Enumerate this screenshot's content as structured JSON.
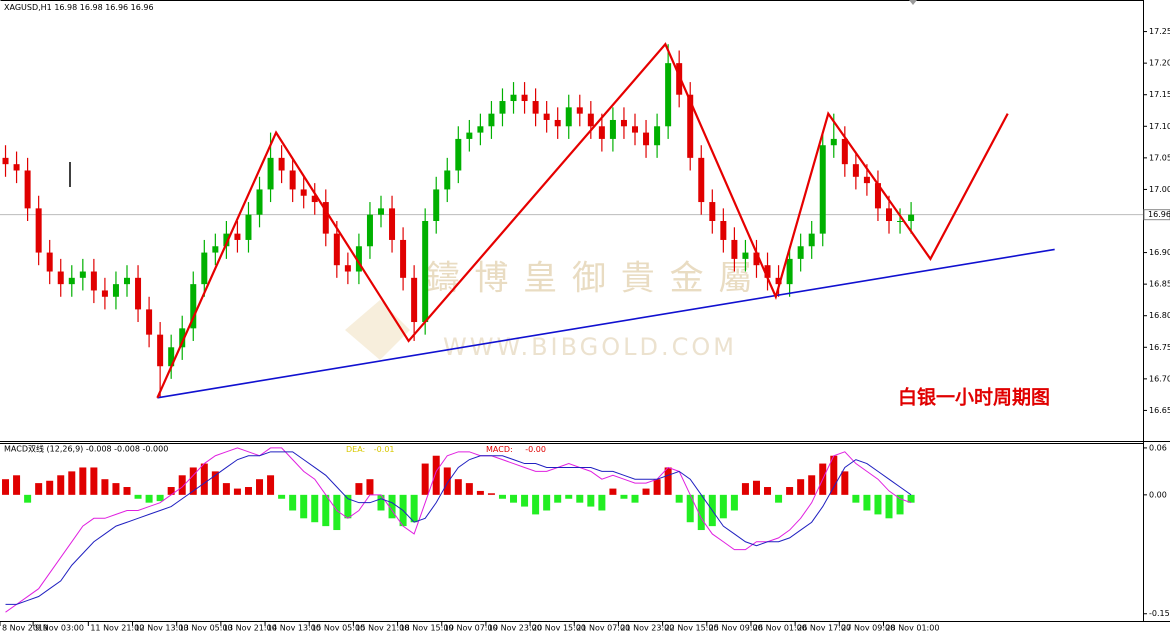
{
  "symbol": "XAGUSD,H1",
  "ohlc_header": [
    16.98,
    16.98,
    16.96,
    16.96
  ],
  "caption": "白银一小时周期图",
  "watermark": [
    "鑄 博 皇 御 貴 金 屬",
    "WWW.BIBGOLD.COM"
  ],
  "chart_data": [
    {
      "type": "candlestick",
      "up_color": "#00b000",
      "down_color": "#e00000",
      "xlim": [
        0,
        414
      ],
      "ylim": [
        16.6,
        17.3
      ],
      "yticks": [
        17.25,
        {
          "value": 17.2,
          "label": "17.20"
        },
        17.15,
        {
          "value": 17.1,
          "label": "17.10"
        },
        17.05,
        {
          "value": 17,
          "label": "17.00"
        },
        {
          "value": 16.9,
          "label": "16.90"
        },
        16.85,
        {
          "value": 16.8,
          "label": "16.80"
        },
        16.75,
        {
          "value": 16.7,
          "label": "16.70"
        },
        16.65
      ],
      "xticks": [
        {
          "value": 0,
          "label": "8 Nov 2019"
        },
        {
          "value": 12,
          "label": "9 Nov 03:00"
        },
        {
          "value": 32,
          "label": "11 Nov 21:00"
        },
        {
          "value": 48,
          "label": "12 Nov 13:00"
        },
        {
          "value": 64,
          "label": "13 Nov 05:00"
        },
        {
          "value": 80,
          "label": "13 Nov 21:00"
        },
        {
          "value": 96,
          "label": "14 Nov 13:00"
        },
        {
          "value": 112,
          "label": "15 Nov 05:00"
        },
        {
          "value": 128,
          "label": "15 Nov 21:00"
        },
        {
          "value": 144,
          "label": "18 Nov 15:00"
        },
        {
          "value": 160,
          "label": "19 Nov 07:00"
        },
        {
          "value": 176,
          "label": "19 Nov 23:00"
        },
        {
          "value": 192,
          "label": "20 Nov 15:00"
        },
        {
          "value": 208,
          "label": "21 Nov 07:00"
        },
        {
          "value": 224,
          "label": "21 Nov 23:00"
        },
        {
          "value": 240,
          "label": "22 Nov 15:00"
        },
        {
          "value": 256,
          "label": "25 Nov 09:00"
        },
        {
          "value": 272,
          "label": "26 Nov 01:00"
        },
        {
          "value": 288,
          "label": "26 Nov 17:00"
        },
        {
          "value": 304,
          "label": "27 Nov 09:00"
        },
        {
          "value": 320,
          "label": "28 Nov 01:00"
        }
      ],
      "current_price": 16.96,
      "x": [
        2,
        6,
        10,
        14,
        18,
        22,
        26,
        30,
        34,
        38,
        42,
        46,
        50,
        54,
        58,
        62,
        66,
        70,
        74,
        78,
        82,
        86,
        90,
        94,
        98,
        102,
        106,
        110,
        114,
        118,
        122,
        126,
        130,
        134,
        138,
        142,
        146,
        150,
        154,
        158,
        162,
        166,
        170,
        174,
        178,
        182,
        186,
        190,
        194,
        198,
        202,
        206,
        210,
        214,
        218,
        222,
        226,
        230,
        234,
        238,
        242,
        246,
        250,
        254,
        258,
        262,
        266,
        270,
        274,
        278,
        282,
        286,
        290,
        294,
        298,
        302,
        306,
        310,
        314,
        318,
        322,
        326,
        330
      ],
      "open": [
        17.05,
        17.04,
        17.03,
        16.97,
        16.9,
        16.87,
        16.85,
        16.86,
        16.87,
        16.84,
        16.83,
        16.85,
        16.86,
        16.81,
        16.77,
        16.72,
        16.75,
        16.78,
        16.85,
        16.9,
        16.91,
        16.93,
        16.92,
        16.96,
        17.0,
        17.05,
        17.03,
        17.0,
        16.99,
        16.98,
        16.93,
        16.88,
        16.87,
        16.91,
        16.96,
        16.97,
        16.92,
        16.86,
        16.79,
        16.95,
        17.0,
        17.03,
        17.08,
        17.09,
        17.1,
        17.12,
        17.14,
        17.15,
        17.14,
        17.12,
        17.11,
        17.1,
        17.13,
        17.12,
        17.1,
        17.08,
        17.11,
        17.1,
        17.09,
        17.07,
        17.1,
        17.2,
        17.15,
        17.05,
        16.98,
        16.95,
        16.92,
        16.89,
        16.9,
        16.88,
        16.86,
        16.85,
        16.89,
        16.91,
        16.93,
        17.07,
        17.08,
        17.04,
        17.02,
        17.01,
        16.97,
        16.95,
        16.95
      ],
      "high": [
        17.07,
        17.06,
        17.05,
        16.99,
        16.92,
        16.89,
        16.88,
        16.89,
        16.89,
        16.86,
        16.87,
        16.88,
        16.88,
        16.83,
        16.79,
        16.77,
        16.8,
        16.87,
        16.92,
        16.93,
        16.95,
        16.95,
        16.98,
        17.02,
        17.09,
        17.07,
        17.05,
        17.02,
        17.01,
        17.0,
        16.95,
        16.9,
        16.93,
        16.98,
        16.99,
        16.99,
        16.94,
        16.88,
        16.97,
        17.02,
        17.05,
        17.1,
        17.11,
        17.12,
        17.14,
        17.16,
        17.17,
        17.17,
        17.16,
        17.14,
        17.13,
        17.15,
        17.15,
        17.14,
        17.12,
        17.13,
        17.13,
        17.12,
        17.11,
        17.12,
        17.23,
        17.22,
        17.17,
        17.07,
        17.0,
        16.97,
        16.94,
        16.92,
        16.92,
        16.9,
        16.88,
        16.91,
        16.93,
        16.95,
        17.09,
        17.12,
        17.1,
        17.06,
        17.04,
        17.03,
        16.99,
        16.97,
        16.98
      ],
      "low": [
        17.02,
        17.01,
        16.95,
        16.88,
        16.85,
        16.83,
        16.83,
        16.84,
        16.82,
        16.81,
        16.81,
        16.83,
        16.79,
        16.75,
        16.67,
        16.7,
        16.73,
        16.76,
        16.83,
        16.88,
        16.89,
        16.9,
        16.9,
        16.94,
        16.98,
        17.01,
        16.98,
        16.97,
        16.96,
        16.91,
        16.86,
        16.85,
        16.85,
        16.89,
        16.94,
        16.9,
        16.84,
        16.76,
        16.77,
        16.93,
        16.98,
        17.01,
        17.06,
        17.07,
        17.08,
        17.1,
        17.12,
        17.12,
        17.1,
        17.09,
        17.08,
        17.08,
        17.1,
        17.08,
        17.06,
        17.06,
        17.08,
        17.07,
        17.05,
        17.05,
        17.08,
        17.13,
        17.03,
        16.96,
        16.93,
        16.9,
        16.87,
        16.87,
        16.86,
        16.84,
        16.83,
        16.83,
        16.87,
        16.89,
        16.91,
        17.05,
        17.02,
        17.0,
        16.99,
        16.95,
        16.93,
        16.93,
        16.93
      ],
      "close": [
        17.04,
        17.03,
        16.97,
        16.9,
        16.87,
        16.85,
        16.86,
        16.87,
        16.84,
        16.83,
        16.85,
        16.86,
        16.81,
        16.77,
        16.72,
        16.75,
        16.78,
        16.85,
        16.9,
        16.91,
        16.93,
        16.92,
        16.96,
        17.0,
        17.05,
        17.03,
        17.0,
        16.99,
        16.98,
        16.93,
        16.88,
        16.87,
        16.91,
        16.96,
        16.97,
        16.92,
        16.86,
        16.79,
        16.95,
        17.0,
        17.03,
        17.08,
        17.09,
        17.1,
        17.12,
        17.14,
        17.15,
        17.14,
        17.12,
        17.11,
        17.1,
        17.13,
        17.12,
        17.1,
        17.08,
        17.11,
        17.1,
        17.09,
        17.07,
        17.1,
        17.2,
        17.15,
        17.05,
        16.98,
        16.95,
        16.92,
        16.89,
        16.9,
        16.88,
        16.86,
        16.85,
        16.89,
        16.91,
        16.93,
        17.07,
        17.08,
        17.04,
        17.02,
        17.01,
        16.97,
        16.95,
        16.95,
        16.96
      ],
      "zigzag": {
        "color": "#e60000",
        "x": [
          57,
          100,
          148,
          241,
          281,
          300,
          337,
          365
        ],
        "values": [
          16.67,
          17.09,
          16.76,
          17.23,
          16.83,
          17.12,
          16.89,
          17.12
        ]
      },
      "trendline": {
        "color": "#1010d0",
        "x": [
          57,
          382
        ],
        "values": [
          16.67,
          16.905
        ]
      }
    },
    {
      "type": "macd",
      "title": "MACD双线 (12,26,9) -0.008 -0.008 -0.000",
      "dea_name": "DEA:",
      "dea_value": "-0.01",
      "macd_name": "MACD:",
      "macd_value": "-0.00",
      "ylim": [
        -0.16,
        0.065
      ],
      "yticks": [
        0.06,
        {
          "value": 0,
          "label": "0.00"
        },
        -0.152
      ],
      "histogram": {
        "up_color": "#e00000",
        "down_color": "#22ee22",
        "values": [
          0.02,
          0.025,
          -0.01,
          0.015,
          0.018,
          0.025,
          0.03,
          0.035,
          0.035,
          0.02,
          0.015,
          0.01,
          -0.005,
          -0.01,
          -0.008,
          0.01,
          0.025,
          0.035,
          0.04,
          0.03,
          0.015,
          0.008,
          0.01,
          0.02,
          0.025,
          -0.005,
          -0.02,
          -0.03,
          -0.035,
          -0.04,
          -0.045,
          -0.03,
          0.015,
          0.02,
          -0.02,
          -0.03,
          -0.04,
          -0.035,
          0.04,
          0.05,
          0.035,
          0.02,
          0.015,
          0.005,
          0.002,
          -0.005,
          -0.01,
          -0.015,
          -0.025,
          -0.02,
          -0.01,
          -0.005,
          -0.01,
          -0.015,
          -0.02,
          0.008,
          -0.005,
          -0.01,
          0.008,
          0.02,
          0.035,
          -0.01,
          -0.035,
          -0.045,
          -0.04,
          -0.03,
          -0.02,
          0.015,
          0.018,
          0.01,
          -0.01,
          0.01,
          0.02,
          0.025,
          0.04,
          0.05,
          0.03,
          -0.01,
          -0.02,
          -0.025,
          -0.03,
          -0.025,
          -0.01
        ]
      },
      "series": [
        {
          "color": "#e020e0",
          "values": [
            -0.15,
            -0.14,
            -0.13,
            -0.12,
            -0.1,
            -0.08,
            -0.06,
            -0.04,
            -0.03,
            -0.03,
            -0.025,
            -0.02,
            -0.02,
            -0.015,
            -0.01,
            0,
            0.01,
            0.025,
            0.04,
            0.05,
            0.055,
            0.06,
            0.055,
            0.05,
            0.06,
            0.06,
            0.045,
            0.03,
            0.02,
            0,
            -0.02,
            -0.03,
            -0.02,
            0,
            0,
            -0.02,
            -0.04,
            -0.05,
            -0.01,
            0.03,
            0.05,
            0.055,
            0.055,
            0.05,
            0.05,
            0.045,
            0.04,
            0.035,
            0.03,
            0.03,
            0.035,
            0.04,
            0.035,
            0.03,
            0.02,
            0.025,
            0.02,
            0.015,
            0.015,
            0.02,
            0.035,
            0.03,
            0,
            -0.03,
            -0.05,
            -0.06,
            -0.07,
            -0.07,
            -0.06,
            -0.06,
            -0.055,
            -0.045,
            -0.03,
            -0.01,
            0.02,
            0.05,
            0.055,
            0.04,
            0.03,
            0.02,
            0.005,
            -0.005,
            -0.01
          ]
        },
        {
          "color": "#2020c0",
          "values": [
            -0.14,
            -0.14,
            -0.135,
            -0.13,
            -0.12,
            -0.11,
            -0.09,
            -0.075,
            -0.06,
            -0.05,
            -0.04,
            -0.035,
            -0.03,
            -0.025,
            -0.02,
            -0.015,
            -0.005,
            0.005,
            0.015,
            0.025,
            0.035,
            0.045,
            0.05,
            0.05,
            0.055,
            0.055,
            0.055,
            0.045,
            0.035,
            0.025,
            0.01,
            -0.005,
            -0.01,
            -0.01,
            -0.005,
            -0.01,
            -0.02,
            -0.035,
            -0.03,
            -0.01,
            0.015,
            0.035,
            0.045,
            0.05,
            0.05,
            0.05,
            0.045,
            0.04,
            0.04,
            0.035,
            0.035,
            0.035,
            0.035,
            0.035,
            0.03,
            0.03,
            0.025,
            0.02,
            0.02,
            0.02,
            0.025,
            0.03,
            0.02,
            0,
            -0.02,
            -0.04,
            -0.05,
            -0.06,
            -0.065,
            -0.06,
            -0.06,
            -0.055,
            -0.045,
            -0.035,
            -0.015,
            0.01,
            0.035,
            0.045,
            0.04,
            0.03,
            0.02,
            0.01,
            0
          ]
        }
      ]
    }
  ]
}
